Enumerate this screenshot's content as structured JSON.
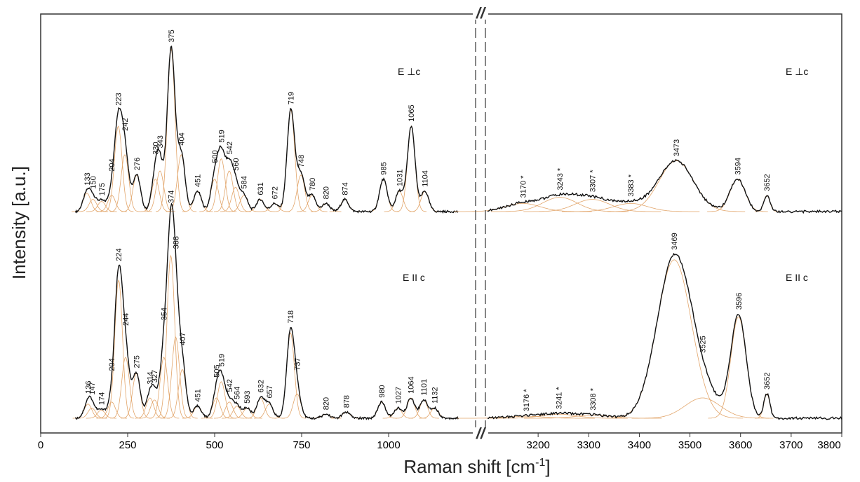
{
  "chart_data": {
    "type": "line",
    "xlabel": "Raman shift [cm",
    "xlabel_superscript": "-1",
    "xlabel_suffix": "]",
    "ylabel": "Intensity [a.u.]",
    "axis_break_symbol": "//",
    "xlim_left": [
      0,
      1200
    ],
    "xlim_right": [
      3100,
      3800
    ],
    "x_ticks_left": [
      0,
      250,
      500,
      750,
      1000
    ],
    "x_ticks_right": [
      3200,
      3300,
      3400,
      3500,
      3600,
      3700,
      3800
    ],
    "x_ticks_left_labels": [
      "0",
      "250",
      "500",
      "750",
      "1000"
    ],
    "x_ticks_right_labels": [
      "3200",
      "3300",
      "3400",
      "3500",
      "3600",
      "3700",
      "3800"
    ],
    "grid": false,
    "colors": {
      "spectrum": "#111111",
      "fit": "#e2a56a",
      "frame": "#333333"
    },
    "panels": [
      {
        "name": "top",
        "polarization": "E ⊥c",
        "peaks_left": [
          {
            "x": 133,
            "h": 0.09
          },
          {
            "x": 150,
            "h": 0.06
          },
          {
            "x": 175,
            "h": 0.05
          },
          {
            "x": 204,
            "h": 0.08
          },
          {
            "x": 223,
            "h": 0.42
          },
          {
            "x": 242,
            "h": 0.28
          },
          {
            "x": 276,
            "h": 0.18
          },
          {
            "x": 330,
            "h": 0.16
          },
          {
            "x": 343,
            "h": 0.2
          },
          {
            "x": 375,
            "h": 0.8
          },
          {
            "x": 404,
            "h": 0.28
          },
          {
            "x": 451,
            "h": 0.1
          },
          {
            "x": 500,
            "h": 0.16
          },
          {
            "x": 519,
            "h": 0.26
          },
          {
            "x": 542,
            "h": 0.2
          },
          {
            "x": 560,
            "h": 0.12
          },
          {
            "x": 584,
            "h": 0.08
          },
          {
            "x": 631,
            "h": 0.06
          },
          {
            "x": 672,
            "h": 0.04
          },
          {
            "x": 719,
            "h": 0.5
          },
          {
            "x": 748,
            "h": 0.18
          },
          {
            "x": 780,
            "h": 0.08
          },
          {
            "x": 820,
            "h": 0.04
          },
          {
            "x": 874,
            "h": 0.06
          },
          {
            "x": 985,
            "h": 0.16
          },
          {
            "x": 1031,
            "h": 0.1
          },
          {
            "x": 1065,
            "h": 0.42
          },
          {
            "x": 1104,
            "h": 0.1
          }
        ],
        "peaks_right": [
          {
            "x": 3170,
            "h": 0.04,
            "label": "3170 *"
          },
          {
            "x": 3243,
            "h": 0.07,
            "label": "3243 *"
          },
          {
            "x": 3307,
            "h": 0.06,
            "label": "3307 *"
          },
          {
            "x": 3383,
            "h": 0.04,
            "label": "3383 *"
          },
          {
            "x": 3473,
            "h": 0.25,
            "label": "3473"
          },
          {
            "x": 3594,
            "h": 0.16,
            "label": "3594"
          },
          {
            "x": 3652,
            "h": 0.08,
            "label": "3652"
          }
        ]
      },
      {
        "name": "bottom",
        "polarization": "E II c",
        "peaks_left": [
          {
            "x": 136,
            "h": 0.07
          },
          {
            "x": 147,
            "h": 0.05
          },
          {
            "x": 174,
            "h": 0.04
          },
          {
            "x": 204,
            "h": 0.08
          },
          {
            "x": 224,
            "h": 0.68
          },
          {
            "x": 244,
            "h": 0.3
          },
          {
            "x": 275,
            "h": 0.22
          },
          {
            "x": 314,
            "h": 0.1
          },
          {
            "x": 327,
            "h": 0.09
          },
          {
            "x": 354,
            "h": 0.3
          },
          {
            "x": 374,
            "h": 0.8
          },
          {
            "x": 388,
            "h": 0.4
          },
          {
            "x": 407,
            "h": 0.24
          },
          {
            "x": 451,
            "h": 0.06
          },
          {
            "x": 505,
            "h": 0.1
          },
          {
            "x": 519,
            "h": 0.18
          },
          {
            "x": 542,
            "h": 0.08
          },
          {
            "x": 564,
            "h": 0.06
          },
          {
            "x": 593,
            "h": 0.05
          },
          {
            "x": 632,
            "h": 0.1
          },
          {
            "x": 657,
            "h": 0.07
          },
          {
            "x": 718,
            "h": 0.42
          },
          {
            "x": 737,
            "h": 0.12
          },
          {
            "x": 820,
            "h": 0.02
          },
          {
            "x": 878,
            "h": 0.03
          },
          {
            "x": 980,
            "h": 0.08
          },
          {
            "x": 1027,
            "h": 0.05
          },
          {
            "x": 1064,
            "h": 0.1
          },
          {
            "x": 1101,
            "h": 0.09
          },
          {
            "x": 1132,
            "h": 0.05
          }
        ],
        "peaks_right": [
          {
            "x": 3176,
            "h": 0.01,
            "label": "3176 *"
          },
          {
            "x": 3241,
            "h": 0.02,
            "label": "3241 *"
          },
          {
            "x": 3308,
            "h": 0.015,
            "label": "3308 *"
          },
          {
            "x": 3469,
            "h": 0.78,
            "label": "3469"
          },
          {
            "x": 3525,
            "h": 0.1,
            "label": "3525"
          },
          {
            "x": 3596,
            "h": 0.5,
            "label": "3596"
          },
          {
            "x": 3652,
            "h": 0.12,
            "label": "3652"
          }
        ]
      }
    ]
  }
}
